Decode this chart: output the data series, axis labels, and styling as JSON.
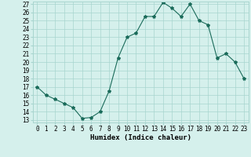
{
  "x": [
    0,
    1,
    2,
    3,
    4,
    5,
    6,
    7,
    8,
    9,
    10,
    11,
    12,
    13,
    14,
    15,
    16,
    17,
    18,
    19,
    20,
    21,
    22,
    23
  ],
  "y": [
    17,
    16,
    15.5,
    15,
    14.5,
    13.2,
    13.3,
    14,
    16.5,
    20.5,
    23,
    23.5,
    25.5,
    25.5,
    27.2,
    26.5,
    25.5,
    27.0,
    25,
    24.5,
    20.5,
    21,
    20,
    18
  ],
  "line_color": "#1a6b5a",
  "marker": "*",
  "marker_size": 3,
  "bg_color": "#d5f0ec",
  "grid_color": "#a8d5cf",
  "xlabel": "Humidex (Indice chaleur)",
  "ylabel": "",
  "ylim": [
    13,
    27
  ],
  "xlim": [
    -0.5,
    23.5
  ],
  "yticks": [
    13,
    14,
    15,
    16,
    17,
    18,
    19,
    20,
    21,
    22,
    23,
    24,
    25,
    26,
    27
  ],
  "xticks": [
    0,
    1,
    2,
    3,
    4,
    5,
    6,
    7,
    8,
    9,
    10,
    11,
    12,
    13,
    14,
    15,
    16,
    17,
    18,
    19,
    20,
    21,
    22,
    23
  ],
  "tick_fontsize": 5.5,
  "xlabel_fontsize": 6.5
}
